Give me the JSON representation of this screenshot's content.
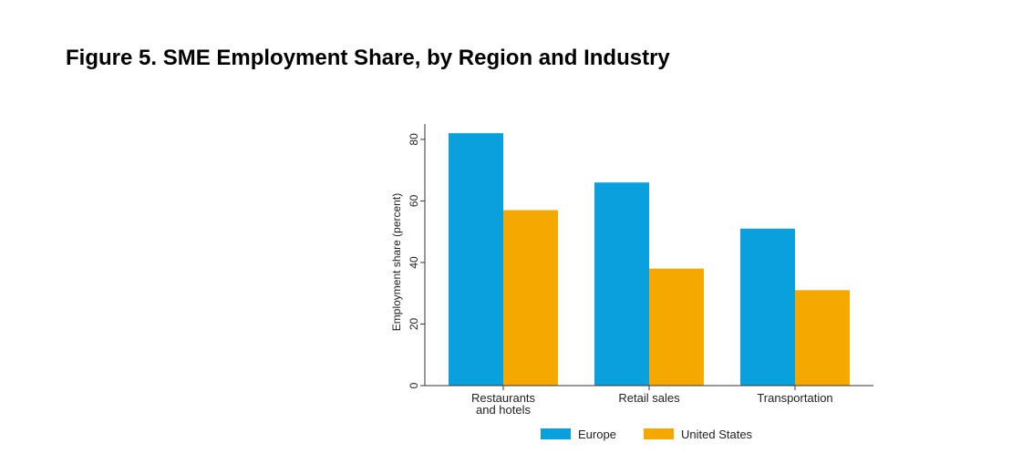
{
  "figure": {
    "title": "Figure 5. SME Employment Share, by Region and Industry"
  },
  "chart_data": {
    "type": "bar",
    "categories": [
      [
        "Restaurants",
        "and hotels"
      ],
      [
        "Retail sales"
      ],
      [
        "Transportation"
      ]
    ],
    "series": [
      {
        "name": "Europe",
        "values": [
          82,
          66,
          51
        ],
        "color": "#0aa0de"
      },
      {
        "name": "United States",
        "values": [
          57,
          38,
          31
        ],
        "color": "#f5a800"
      }
    ],
    "ylabel": "Employment share (percent)",
    "ylim": [
      0,
      85
    ],
    "yticks": [
      0,
      20,
      40,
      60,
      80
    ],
    "grid": false,
    "legend_position": "bottom"
  }
}
